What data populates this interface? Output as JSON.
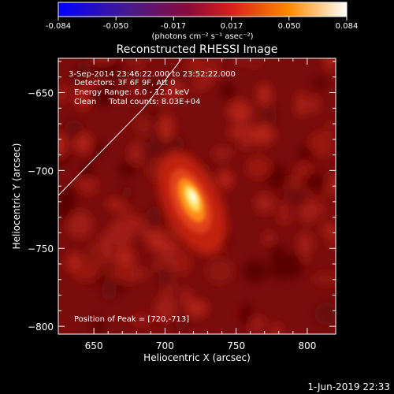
{
  "colorbar": {
    "tick_labels": [
      "-0.084",
      "-0.050",
      "-0.017",
      "0.017",
      "0.050",
      "0.084"
    ],
    "unit_label": "(photons cm⁻² s⁻¹ asec⁻²)",
    "range": [
      -0.084,
      0.084
    ]
  },
  "chart_data": {
    "type": "heatmap",
    "title": "Reconstructed RHESSI Image",
    "xlabel": "Heliocentric X (arcsec)",
    "ylabel": "Heliocentric Y (arcsec)",
    "xlim": [
      625,
      820
    ],
    "ylim": [
      -805,
      -628
    ],
    "x_ticks": [
      650,
      700,
      750,
      800
    ],
    "y_ticks": [
      -650,
      -700,
      -750,
      -800
    ],
    "x_tick_labels": [
      "650",
      "700",
      "750",
      "800"
    ],
    "y_tick_labels": [
      "−650",
      "−700",
      "−750",
      "−800"
    ],
    "peak": {
      "x": 720,
      "y": -713
    },
    "annotations": [
      "3-Sep-2014 23:46:22.000 to 23:52:22.000",
      "Detectors: 3F 6F 9F, Att 0",
      "Energy Range: 6.0 - 12.0 keV",
      "Clean     Total counts: 8.03E+04",
      "Position of Peak = [720,-713]"
    ],
    "limb_line": [
      [
        625,
        -716
      ],
      [
        685,
        -660
      ],
      [
        712,
        -628
      ]
    ]
  },
  "footer_date": "1-Jun-2019 22:33"
}
